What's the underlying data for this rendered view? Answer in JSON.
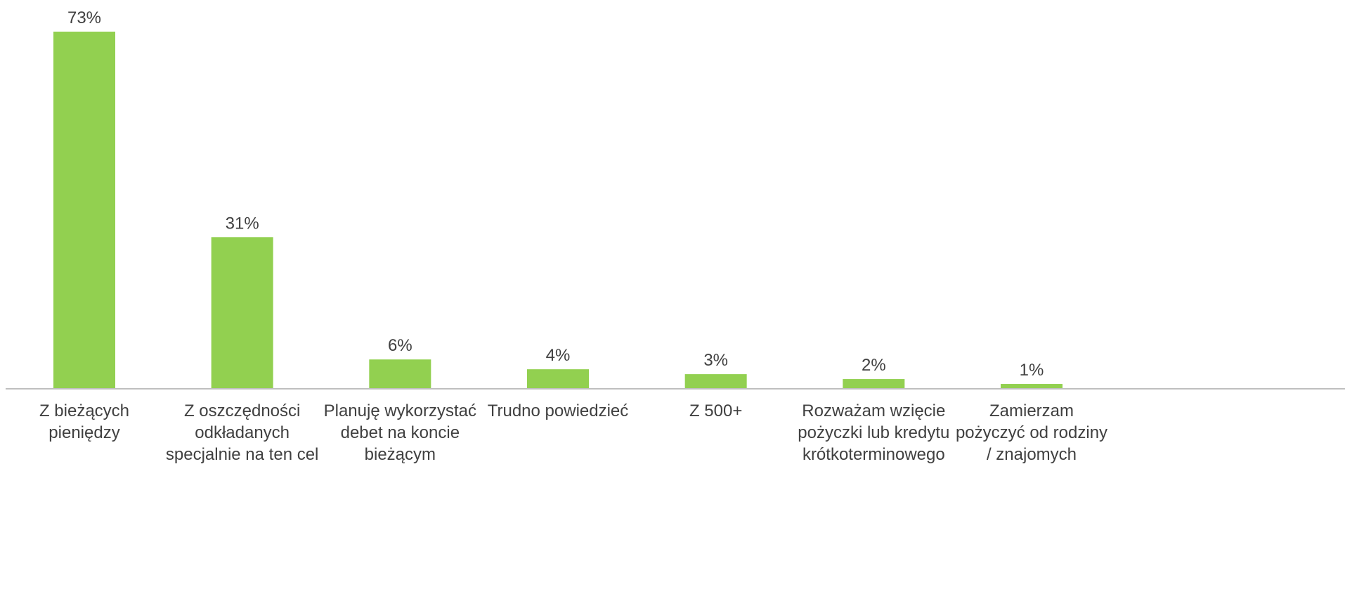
{
  "chart_data": {
    "type": "bar",
    "categories": [
      "Z bieżących pieniędzy",
      "Z oszczędności odkładanych specjalnie na ten cel",
      "Planuję wykorzystać debet na koncie bieżącym",
      "Trudno powiedzieć",
      "Z 500+",
      "Rozważam wzięcie pożyczki lub kredytu krótkoterminowego",
      "Zamierzam pożyczyć od rodziny / znajomych"
    ],
    "values": [
      73,
      31,
      6,
      4,
      3,
      2,
      1
    ],
    "value_labels": [
      "73%",
      "31%",
      "6%",
      "4%",
      "3%",
      "2%",
      "1%"
    ],
    "color": "#92d050"
  }
}
